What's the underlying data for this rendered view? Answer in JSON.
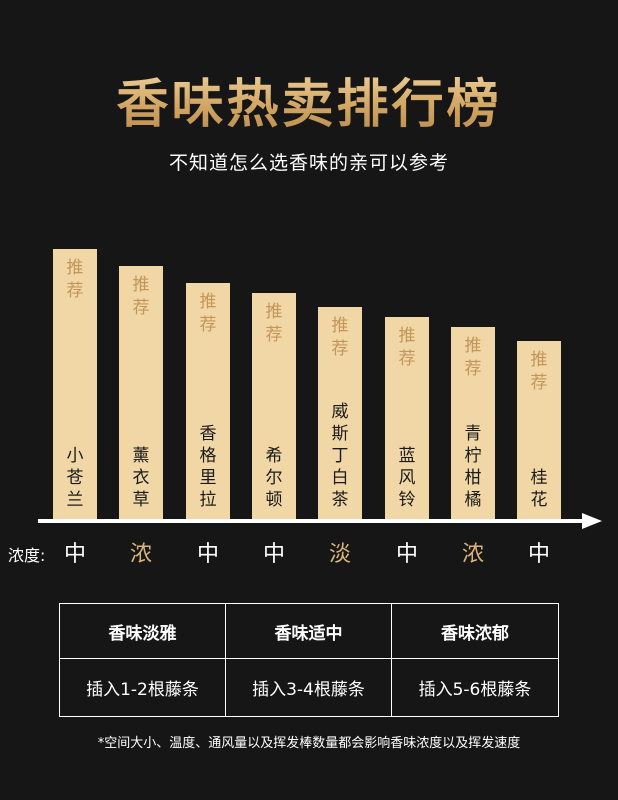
{
  "title": "香味热卖排行榜",
  "subtitle": "不知道怎么选香味的亲可以参考",
  "colors": {
    "background": "#161617",
    "gold": "#d9b478",
    "bar": "#f0d7a5",
    "recommend_text": "#c4955a",
    "light_label": "#ffffff",
    "strong_label": "#d9b478"
  },
  "recommend_label": "推荐",
  "items": [
    {
      "name": "小\n苍\n兰",
      "concentration": "中",
      "strong": false
    },
    {
      "name": "薰\n衣\n草",
      "concentration": "浓",
      "strong": true
    },
    {
      "name": "香\n格\n里\n拉",
      "concentration": "中",
      "strong": false
    },
    {
      "name": "希\n尔\n顿",
      "concentration": "中",
      "strong": false
    },
    {
      "name": "威\n斯\n丁\n白\n茶",
      "concentration": "淡",
      "strong": true
    },
    {
      "name": "蓝\n风\n铃",
      "concentration": "中",
      "strong": false
    },
    {
      "name": "青\n柠\n柑\n橘",
      "concentration": "浓",
      "strong": true
    },
    {
      "name": "桂\n花",
      "concentration": "中",
      "strong": false
    }
  ],
  "chart_data": {
    "type": "bar",
    "title": "香味热卖排行榜",
    "categories": [
      "小苍兰",
      "薰衣草",
      "香格里拉",
      "希尔顿",
      "威斯丁白茶",
      "蓝风铃",
      "青柠柑橘",
      "桂花"
    ],
    "values": [
      8,
      7.5,
      7,
      6.7,
      6.3,
      6,
      5.7,
      5.3
    ],
    "bar_label": "推荐",
    "concentration": [
      "中",
      "浓",
      "中",
      "中",
      "淡",
      "中",
      "浓",
      "中"
    ]
  },
  "concentration_label": "浓度:",
  "table": {
    "headers": [
      "香味淡雅",
      "香味适中",
      "香味浓郁"
    ],
    "values": [
      "插入1-2根藤条",
      "插入3-4根藤条",
      "插入5-6根藤条"
    ]
  },
  "note": "*空间大小、温度、通风量以及挥发棒数量都会影响香味浓度以及挥发速度"
}
